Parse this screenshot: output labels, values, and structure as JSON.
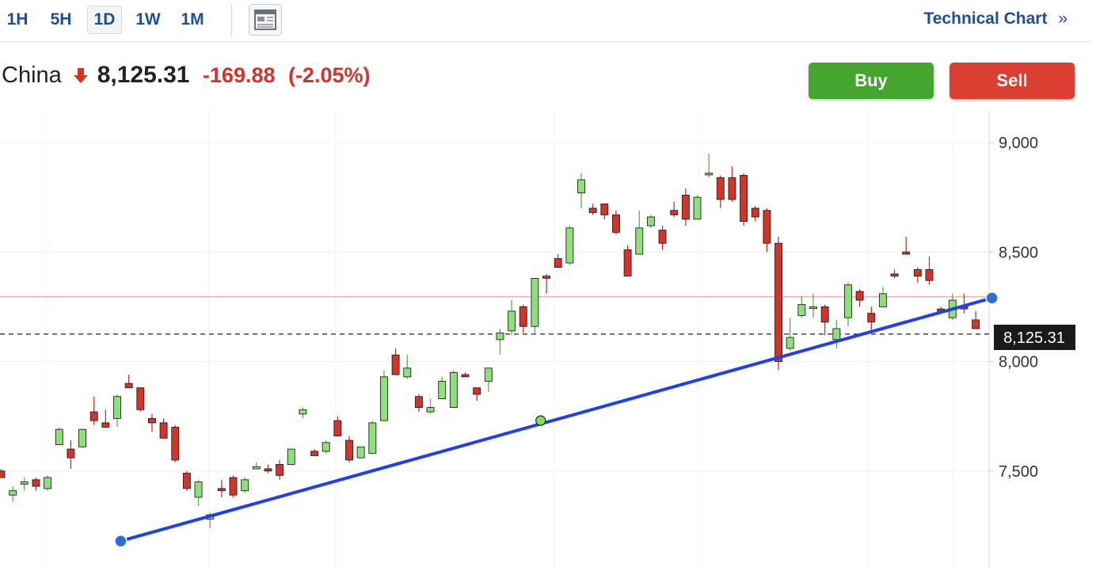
{
  "toolbar": {
    "timeframes": [
      {
        "label": "1H",
        "active": false
      },
      {
        "label": "5H",
        "active": false
      },
      {
        "label": "1D",
        "active": true
      },
      {
        "label": "1W",
        "active": false
      },
      {
        "label": "1M",
        "active": false
      }
    ],
    "layout_icon": "layout-icon",
    "technical_chart_label": "Technical Chart",
    "technical_chart_glyph": "»"
  },
  "quote": {
    "name": "China",
    "direction": "down",
    "price": "8,125.31",
    "change": "-169.88",
    "change_pct": "(-2.05%)"
  },
  "actions": {
    "buy_label": "Buy",
    "sell_label": "Sell"
  },
  "colors": {
    "up": "#8ee07a",
    "down": "#d63328",
    "trendline": "#1f3ff0",
    "brand": "#1e4f9c",
    "buy": "#45a62f",
    "sell": "#db3f31",
    "prev_close_line": "#e08a8a"
  },
  "chart_data": {
    "type": "candlestick",
    "yticks": [
      7500,
      8000,
      8500,
      9000
    ],
    "ytick_labels": [
      "7,500",
      "8,000",
      "8,500",
      "9,000"
    ],
    "ylim": [
      7100,
      9100
    ],
    "last_price": 8125.31,
    "last_price_label": "8,125.31",
    "prev_close": 8295.19,
    "grid": true,
    "candles": [
      [
        7500,
        7510,
        7470,
        7470
      ],
      [
        7390,
        7430,
        7360,
        7410
      ],
      [
        7440,
        7470,
        7410,
        7450
      ],
      [
        7460,
        7470,
        7410,
        7430
      ],
      [
        7420,
        7480,
        7410,
        7470
      ],
      [
        7620,
        7700,
        7620,
        7690
      ],
      [
        7600,
        7640,
        7510,
        7560
      ],
      [
        7610,
        7690,
        7610,
        7690
      ],
      [
        7770,
        7840,
        7710,
        7730
      ],
      [
        7720,
        7780,
        7700,
        7700
      ],
      [
        7740,
        7850,
        7700,
        7840
      ],
      [
        7900,
        7940,
        7880,
        7880
      ],
      [
        7880,
        7880,
        7770,
        7780
      ],
      [
        7740,
        7760,
        7680,
        7720
      ],
      [
        7720,
        7740,
        7670,
        7650
      ],
      [
        7700,
        7710,
        7540,
        7550
      ],
      [
        7490,
        7500,
        7410,
        7420
      ],
      [
        7380,
        7460,
        7340,
        7450
      ],
      [
        7280,
        7310,
        7240,
        7300
      ],
      [
        7420,
        7460,
        7380,
        7410
      ],
      [
        7470,
        7480,
        7380,
        7390
      ],
      [
        7410,
        7470,
        7400,
        7460
      ],
      [
        7510,
        7540,
        7510,
        7520
      ],
      [
        7510,
        7530,
        7490,
        7500
      ],
      [
        7530,
        7550,
        7460,
        7480
      ],
      [
        7530,
        7600,
        7530,
        7600
      ],
      [
        7760,
        7790,
        7740,
        7780
      ],
      [
        7590,
        7600,
        7570,
        7570
      ],
      [
        7590,
        7640,
        7580,
        7630
      ],
      [
        7730,
        7750,
        7660,
        7660
      ],
      [
        7640,
        7660,
        7540,
        7550
      ],
      [
        7560,
        7610,
        7560,
        7610
      ],
      [
        7580,
        7730,
        7580,
        7720
      ],
      [
        7730,
        7960,
        7730,
        7930
      ],
      [
        8030,
        8060,
        7940,
        7940
      ],
      [
        7930,
        8030,
        7920,
        7970
      ],
      [
        7840,
        7850,
        7770,
        7790
      ],
      [
        7770,
        7830,
        7760,
        7790
      ],
      [
        7830,
        7930,
        7830,
        7910
      ],
      [
        7790,
        7960,
        7790,
        7950
      ],
      [
        7940,
        7950,
        7930,
        7930
      ],
      [
        7880,
        7880,
        7820,
        7850
      ],
      [
        7910,
        7970,
        7860,
        7970
      ],
      [
        8100,
        8150,
        8030,
        8130
      ],
      [
        8140,
        8280,
        8120,
        8230
      ],
      [
        8250,
        8260,
        8130,
        8160
      ],
      [
        8160,
        8370,
        8130,
        8380
      ],
      [
        8390,
        8400,
        8310,
        8380
      ],
      [
        8470,
        8490,
        8440,
        8430
      ],
      [
        8450,
        8620,
        8440,
        8610
      ],
      [
        8770,
        8860,
        8700,
        8830
      ],
      [
        8700,
        8720,
        8670,
        8680
      ],
      [
        8720,
        8710,
        8650,
        8670
      ],
      [
        8670,
        8690,
        8580,
        8590
      ],
      [
        8510,
        8530,
        8390,
        8390
      ],
      [
        8490,
        8690,
        8500,
        8610
      ],
      [
        8620,
        8670,
        8610,
        8660
      ],
      [
        8600,
        8620,
        8510,
        8540
      ],
      [
        8690,
        8730,
        8660,
        8670
      ],
      [
        8760,
        8790,
        8620,
        8650
      ],
      [
        8650,
        8760,
        8650,
        8750
      ],
      [
        8860,
        8950,
        8840,
        8860
      ],
      [
        8840,
        8850,
        8700,
        8740
      ],
      [
        8840,
        8890,
        8730,
        8740
      ],
      [
        8850,
        8860,
        8620,
        8640
      ],
      [
        8700,
        8710,
        8640,
        8660
      ],
      [
        8690,
        8700,
        8500,
        8540
      ],
      [
        8540,
        8570,
        7960,
        8000
      ],
      [
        8060,
        8200,
        8050,
        8110
      ],
      [
        8210,
        8300,
        8200,
        8260
      ],
      [
        8250,
        8310,
        8200,
        8250
      ],
      [
        8250,
        8260,
        8120,
        8180
      ],
      [
        8100,
        8190,
        8060,
        8150
      ],
      [
        8200,
        8360,
        8160,
        8350
      ],
      [
        8320,
        8330,
        8250,
        8280
      ],
      [
        8220,
        8250,
        8140,
        8180
      ],
      [
        8250,
        8340,
        8250,
        8310
      ],
      [
        8400,
        8420,
        8380,
        8390
      ],
      [
        8500,
        8570,
        8490,
        8490
      ],
      [
        8420,
        8430,
        8360,
        8390
      ],
      [
        8420,
        8480,
        8350,
        8370
      ],
      [
        8240,
        8250,
        8230,
        8230
      ],
      [
        8200,
        8310,
        8190,
        8280
      ],
      [
        8250,
        8310,
        8220,
        8240
      ],
      [
        8190,
        8230,
        8150,
        8150
      ]
    ],
    "trendline": {
      "start": {
        "index": 10.3,
        "value": 7180
      },
      "mid": {
        "index": 46.5,
        "value": 7730
      },
      "end": {
        "index": 85.4,
        "value": 8290
      }
    }
  }
}
